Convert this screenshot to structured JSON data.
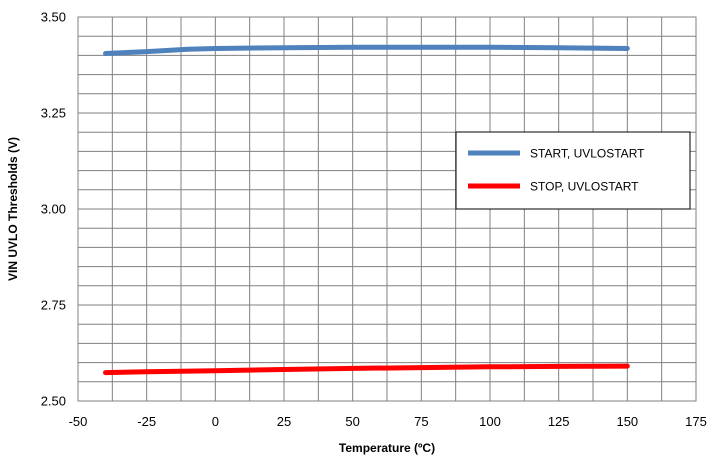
{
  "chart_data": {
    "type": "line",
    "title": "",
    "xlabel": "Temperature (ºC)",
    "ylabel": "VIN UVLO Thresholds (V)",
    "xlim": [
      -50,
      175
    ],
    "ylim": [
      2.5,
      3.5
    ],
    "x_ticks": [
      "-50",
      "-25",
      "0",
      "25",
      "50",
      "75",
      "100",
      "125",
      "150",
      "175"
    ],
    "y_ticks": [
      "2.50",
      "2.75",
      "3.00",
      "3.25",
      "3.50"
    ],
    "grid": true,
    "legend_position": "right",
    "series": [
      {
        "name": "START, UVLOSTART",
        "color": "#4f81bd",
        "x": [
          -40,
          -25,
          -10,
          0,
          25,
          50,
          75,
          100,
          125,
          150
        ],
        "y": [
          3.405,
          3.41,
          3.416,
          3.418,
          3.42,
          3.421,
          3.421,
          3.421,
          3.42,
          3.418
        ]
      },
      {
        "name": "STOP, UVLOSTART",
        "color": "#ff0000",
        "x": [
          -40,
          -25,
          0,
          25,
          50,
          75,
          100,
          125,
          150
        ],
        "y": [
          2.574,
          2.576,
          2.579,
          2.582,
          2.585,
          2.587,
          2.589,
          2.59,
          2.591
        ]
      }
    ]
  }
}
